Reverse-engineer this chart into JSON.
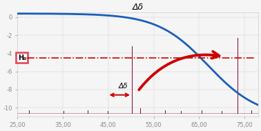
{
  "title": "Δδ",
  "xlim": [
    25,
    78
  ],
  "ylim": [
    -11,
    0.5
  ],
  "xticks": [
    25.0,
    35.0,
    45.0,
    55.0,
    65.0,
    75.0
  ],
  "yticks": [
    0,
    -2,
    -4,
    -6,
    -8,
    -10
  ],
  "curve_color": "#1a5eb8",
  "h0_line_y": -4.5,
  "h0_line_color": "#cc0000",
  "h0_label": "H₀",
  "h0_box_edgecolor": "#e05060",
  "delta_delta_label": "Δδ",
  "arrow_color": "#cc0000",
  "background_color": "#f5f5f5",
  "spike_color": "#800020",
  "spike_positions": [
    27.5,
    35.2,
    40.5,
    44.8,
    50.2,
    52.0,
    57.5,
    61.0,
    65.5,
    70.0,
    73.5,
    76.5
  ],
  "spike_heights": [
    -10.3,
    -10.4,
    -10.3,
    -10.4,
    -3.2,
    -10.1,
    -10.3,
    -10.4,
    -10.3,
    -10.4,
    -2.3,
    -10.3
  ],
  "baseline_y": -10.6
}
